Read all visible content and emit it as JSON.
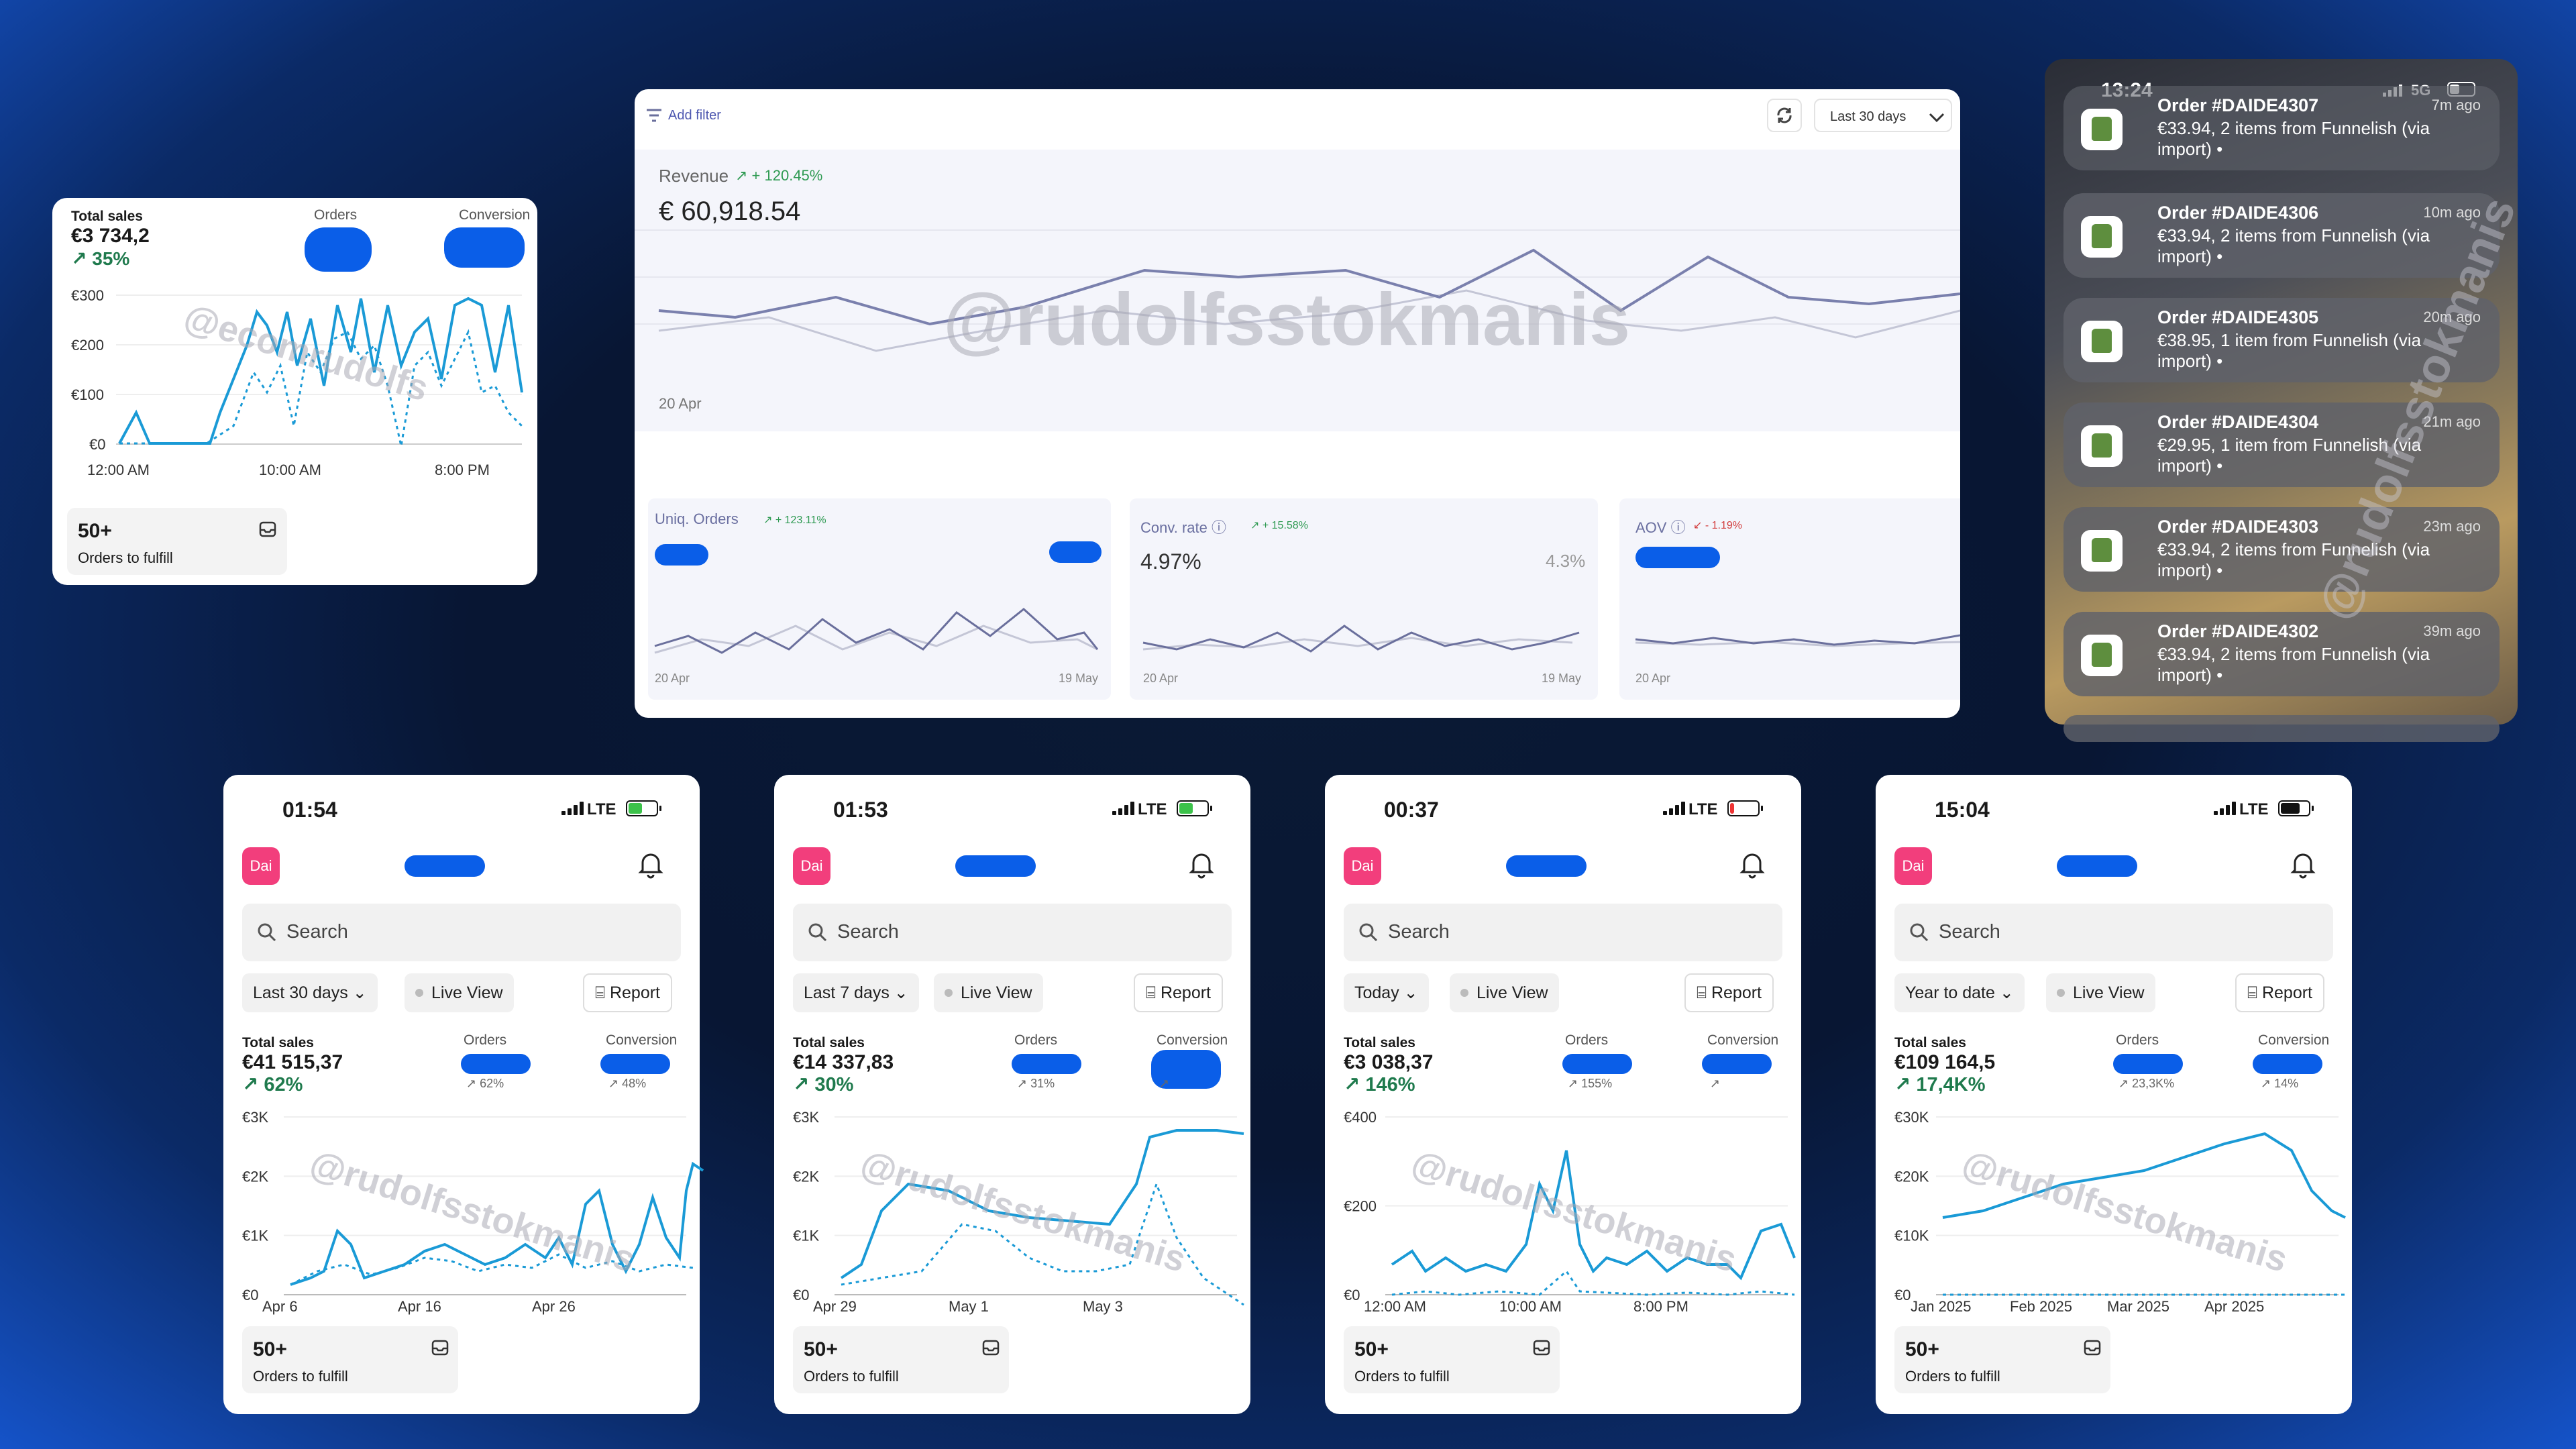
{
  "small_card": {
    "total_label": "Total sales",
    "total_value": "€3 734,2",
    "total_pct": "35%",
    "orders_label": "Orders",
    "conversion_label": "Conversion",
    "y_ticks": [
      "€300",
      "€200",
      "€100",
      "€0"
    ],
    "x_ticks": [
      "12:00 AM",
      "10:00 AM",
      "8:00 PM"
    ],
    "fulfill_count": "50+",
    "fulfill_label": "Orders to fulfill",
    "watermark": "@ecomrudolfs"
  },
  "dashboard": {
    "add_filter": "Add filter",
    "range": "Last 30 days",
    "revenue_label": "Revenue",
    "revenue_change": "+ 120.45%",
    "revenue_value": "€ 60,918.54",
    "revenue_date": "20 Apr",
    "watermark": "@rudolfsstokmanis",
    "cards": [
      {
        "label": "Uniq. Orders",
        "change": "+ 123.11%",
        "start": "20 Apr",
        "end": "19 May"
      },
      {
        "label": "Conv. rate",
        "change": "+ 15.58%",
        "value": "4.97%",
        "prev": "4.3%",
        "start": "20 Apr",
        "end": "19 May"
      },
      {
        "label": "AOV",
        "change": "- 1.19%",
        "start": "20 Apr"
      }
    ]
  },
  "notifications": {
    "time": "13:24",
    "network": "5G",
    "items": [
      {
        "title": "Order #DAIDE4307",
        "ago": "7m ago",
        "body": "€33.94, 2 items from Funnelish (via import) •"
      },
      {
        "title": "Order #DAIDE4306",
        "ago": "10m ago",
        "body": "€33.94, 2 items from Funnelish (via import) •"
      },
      {
        "title": "Order #DAIDE4305",
        "ago": "20m ago",
        "body": "€38.95, 1 item from Funnelish (via import) •"
      },
      {
        "title": "Order #DAIDE4304",
        "ago": "21m ago",
        "body": "€29.95, 1 item from Funnelish (via import) •"
      },
      {
        "title": "Order #DAIDE4303",
        "ago": "23m ago",
        "body": "€33.94, 2 items from Funnelish (via import) •"
      },
      {
        "title": "Order #DAIDE4302",
        "ago": "39m ago",
        "body": "€33.94, 2 items from Funnelish (via import) •"
      }
    ],
    "watermark": "@rudolfsstokmanis"
  },
  "phones": [
    {
      "time": "01:54",
      "network": "LTE",
      "avatar": "Dai",
      "search": "Search",
      "range": "Last 30 days",
      "live": "Live View",
      "report": "Report",
      "total_label": "Total sales",
      "total_value": "€41 515,37",
      "total_pct": "62%",
      "orders_label": "Orders",
      "orders_pct": "62%",
      "conversion_label": "Conversion",
      "conversion_pct": "48%",
      "y_ticks": [
        "€3K",
        "€2K",
        "€1K",
        "€0"
      ],
      "x_ticks": [
        "Apr 6",
        "Apr 16",
        "Apr 26"
      ],
      "fulfill_count": "50+",
      "fulfill_label": "Orders to fulfill",
      "watermark": "@rudolfsstokmanis"
    },
    {
      "time": "01:53",
      "network": "LTE",
      "avatar": "Dai",
      "search": "Search",
      "range": "Last 7 days",
      "live": "Live View",
      "report": "Report",
      "total_label": "Total sales",
      "total_value": "€14 337,83",
      "total_pct": "30%",
      "orders_label": "Orders",
      "orders_pct": "31%",
      "conversion_label": "Conversion",
      "conversion_pct": "",
      "y_ticks": [
        "€3K",
        "€2K",
        "€1K",
        "€0"
      ],
      "x_ticks": [
        "Apr 29",
        "May 1",
        "May 3"
      ],
      "fulfill_count": "50+",
      "fulfill_label": "Orders to fulfill",
      "watermark": "@rudolfsstokmanis"
    },
    {
      "time": "00:37",
      "network": "LTE",
      "avatar": "Dai",
      "search": "Search",
      "range": "Today",
      "live": "Live View",
      "report": "Report",
      "total_label": "Total sales",
      "total_value": "€3 038,37",
      "total_pct": "146%",
      "orders_label": "Orders",
      "orders_pct": "155%",
      "conversion_label": "Conversion",
      "conversion_pct": "",
      "y_ticks": [
        "€400",
        "€200",
        "€0"
      ],
      "x_ticks": [
        "12:00 AM",
        "10:00 AM",
        "8:00 PM"
      ],
      "fulfill_count": "50+",
      "fulfill_label": "Orders to fulfill",
      "watermark": "@rudolfsstokmanis"
    },
    {
      "time": "15:04",
      "network": "LTE",
      "avatar": "Dai",
      "search": "Search",
      "range": "Year to date",
      "live": "Live View",
      "report": "Report",
      "total_label": "Total sales",
      "total_value": "€109 164,5",
      "total_pct": "17,4K%",
      "orders_label": "Orders",
      "orders_pct": "23,3K%",
      "conversion_label": "Conversion",
      "conversion_pct": "14%",
      "y_ticks": [
        "€30K",
        "€20K",
        "€10K",
        "€0"
      ],
      "x_ticks": [
        "Jan 2025",
        "Feb 2025",
        "Mar 2025",
        "Apr 2025"
      ],
      "fulfill_count": "50+",
      "fulfill_label": "Orders to fulfill",
      "watermark": "@rudolfsstokmanis"
    }
  ],
  "colors": {
    "accent": "#1a9ad6",
    "up": "#1f7a4d",
    "redact": "#0a5ee8",
    "avatar": "#f23e7c"
  }
}
